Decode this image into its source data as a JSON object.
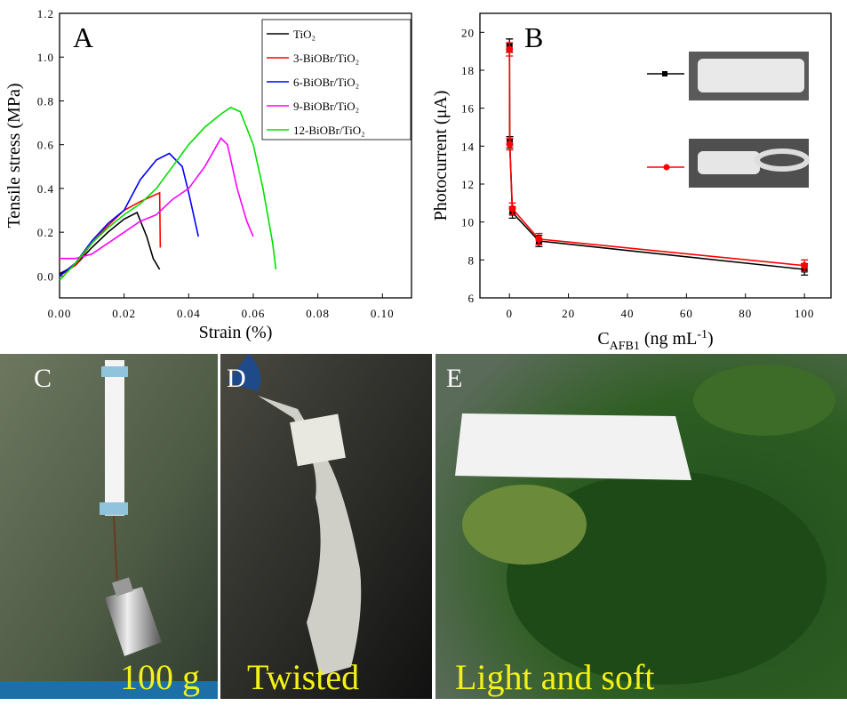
{
  "chart_data": [
    {
      "type": "line",
      "panel": "A",
      "xlabel": "Strain (%)",
      "ylabel": "Tensile stress (MPa)",
      "xlim": [
        0,
        0.109
      ],
      "ylim": [
        -0.1,
        1.2
      ],
      "xticks": [
        {
          "value": 0,
          "label": "0.00"
        },
        {
          "value": 0.02,
          "label": "0.02"
        },
        {
          "value": 0.04,
          "label": "0.04"
        },
        {
          "value": 0.06,
          "label": "0.06"
        },
        {
          "value": 0.08,
          "label": "0.08"
        },
        {
          "value": 0.1,
          "label": "0.10"
        }
      ],
      "yticks": [
        {
          "value": 0,
          "label": "0.0"
        },
        0.2,
        0.4,
        0.6,
        0.8,
        {
          "value": 1,
          "label": "1.0"
        },
        1.2
      ],
      "series": [
        {
          "name": "TiO₂",
          "color": "#000000",
          "x": [
            0,
            0.005,
            0.01,
            0.015,
            0.02,
            0.024,
            0.027,
            0.029,
            0.031
          ],
          "values": [
            0.01,
            0.05,
            0.13,
            0.2,
            0.26,
            0.29,
            0.18,
            0.08,
            0.03
          ]
        },
        {
          "name": "3-BiOBr/TiO₂",
          "color": "#ff0000",
          "x": [
            0,
            0.005,
            0.01,
            0.015,
            0.02,
            0.025,
            0.031,
            0.0312
          ],
          "values": [
            0,
            0.05,
            0.15,
            0.23,
            0.3,
            0.34,
            0.38,
            0.13
          ]
        },
        {
          "name": "6-BiOBr/TiO₂",
          "color": "#0000ff",
          "x": [
            0,
            0.005,
            0.01,
            0.015,
            0.02,
            0.025,
            0.03,
            0.034,
            0.038,
            0.04,
            0.043
          ],
          "values": [
            0,
            0.06,
            0.16,
            0.24,
            0.3,
            0.44,
            0.53,
            0.56,
            0.5,
            0.38,
            0.18
          ]
        },
        {
          "name": "9-BiOBr/TiO₂",
          "color": "#ff00ff",
          "x": [
            0,
            0.005,
            0.01,
            0.015,
            0.02,
            0.025,
            0.03,
            0.035,
            0.04,
            0.045,
            0.05,
            0.052,
            0.055,
            0.058,
            0.06
          ],
          "values": [
            0.08,
            0.08,
            0.1,
            0.15,
            0.2,
            0.25,
            0.28,
            0.35,
            0.4,
            0.5,
            0.63,
            0.6,
            0.4,
            0.25,
            0.18
          ]
        },
        {
          "name": "12-BiOBr/TiO₂",
          "color": "#00e000",
          "x": [
            0,
            0.005,
            0.01,
            0.015,
            0.02,
            0.025,
            0.03,
            0.035,
            0.04,
            0.045,
            0.05,
            0.053,
            0.056,
            0.06,
            0.063,
            0.066,
            0.067
          ],
          "values": [
            -0.02,
            0.06,
            0.15,
            0.22,
            0.28,
            0.33,
            0.4,
            0.5,
            0.6,
            0.68,
            0.74,
            0.77,
            0.75,
            0.6,
            0.4,
            0.15,
            0.03
          ]
        }
      ]
    },
    {
      "type": "line",
      "panel": "B",
      "xlabel_parts": [
        "C",
        "AFB1",
        " (ng mL",
        "-1",
        ")"
      ],
      "ylabel": "Photocurrent (μA)",
      "xlim": [
        -10,
        109
      ],
      "ylim": [
        6,
        21
      ],
      "xticks": [
        0,
        20,
        40,
        60,
        80,
        100
      ],
      "yticks": [
        6,
        8,
        10,
        12,
        14,
        16,
        18,
        20
      ],
      "series": [
        {
          "color": "#000000",
          "marker": "square",
          "x": [
            0.01,
            0.1,
            1,
            10,
            100
          ],
          "values": [
            19.3,
            14.2,
            10.5,
            9.0,
            7.5
          ],
          "errors": [
            0.35,
            0.3,
            0.3,
            0.3,
            0.3
          ]
        },
        {
          "color": "#ff0000",
          "marker": "circle",
          "x": [
            0.01,
            0.1,
            1,
            10,
            100
          ],
          "values": [
            19.1,
            14.1,
            10.7,
            9.1,
            7.7
          ],
          "errors": [
            0.35,
            0.3,
            0.3,
            0.3,
            0.3
          ]
        }
      ]
    }
  ],
  "photos": [
    {
      "label": "C",
      "caption": "100 g"
    },
    {
      "label": "D",
      "caption": "Twisted"
    },
    {
      "label": "E",
      "caption": "Light and soft"
    }
  ]
}
